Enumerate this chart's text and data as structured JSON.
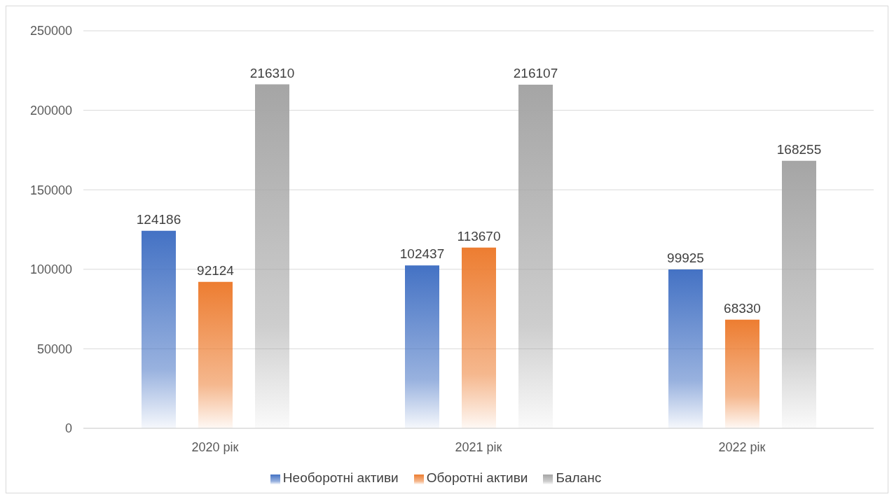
{
  "chart_data": {
    "type": "bar",
    "categories": [
      "2020 рік",
      "2021 рік",
      "2022 рік"
    ],
    "series": [
      {
        "name": "Необоротні активи",
        "color": "#4472c4",
        "values": [
          124186,
          102437,
          99925
        ]
      },
      {
        "name": "Оборотні активи",
        "color": "#ed7d31",
        "values": [
          92124,
          113670,
          68330
        ]
      },
      {
        "name": "Баланс",
        "color": "#a5a5a5",
        "values": [
          216310,
          216107,
          168255
        ]
      }
    ],
    "ylim": [
      0,
      250000
    ],
    "yticks": [
      0,
      50000,
      100000,
      150000,
      200000,
      250000
    ],
    "grid": "y",
    "legend": "bottom",
    "data_labels": true
  }
}
